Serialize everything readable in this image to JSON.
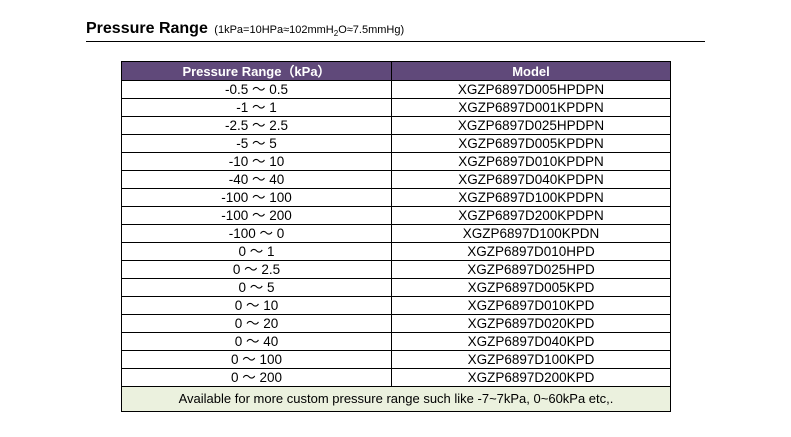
{
  "heading": {
    "title": "Pressure Range",
    "note_prefix": "(1kPa=10HPa≈102mmH",
    "note_sub": "2",
    "note_suffix": "O≈7.5mmHg)"
  },
  "table": {
    "columns": [
      "Pressure Range（kPa）",
      "Model"
    ],
    "rows": [
      {
        "range": "-0.5 ～ 0.5",
        "model": "XGZP6897D005HPDPN"
      },
      {
        "range": "-1 ～ 1",
        "model": "XGZP6897D001KPDPN"
      },
      {
        "range": "-2.5 ～ 2.5",
        "model": "XGZP6897D025HPDPN"
      },
      {
        "range": "-5 ～ 5",
        "model": "XGZP6897D005KPDPN"
      },
      {
        "range": "-10 ～ 10",
        "model": "XGZP6897D010KPDPN"
      },
      {
        "range": "-40 ～ 40",
        "model": "XGZP6897D040KPDPN"
      },
      {
        "range": "-100 ～ 100",
        "model": "XGZP6897D100KPDPN"
      },
      {
        "range": "-100 ～ 200",
        "model": "XGZP6897D200KPDPN"
      },
      {
        "range": "-100 ～ 0",
        "model": "XGZP6897D100KPDN"
      },
      {
        "range": "0 ～ 1",
        "model": "XGZP6897D010HPD"
      },
      {
        "range": "0 ～ 2.5",
        "model": "XGZP6897D025HPD"
      },
      {
        "range": "0 ～ 5",
        "model": "XGZP6897D005KPD"
      },
      {
        "range": "0 ～ 10",
        "model": "XGZP6897D010KPD"
      },
      {
        "range": "0 ～ 20",
        "model": "XGZP6897D020KPD"
      },
      {
        "range": "0 ～ 40",
        "model": "XGZP6897D040KPD"
      },
      {
        "range": "0 ～ 100",
        "model": "XGZP6897D100KPD"
      },
      {
        "range": "0 ～ 200",
        "model": "XGZP6897D200KPD"
      }
    ],
    "footer_note": "Available for more custom pressure range such like -7~7kPa, 0~60kPa etc,."
  },
  "colors": {
    "header_bg": "#60497a",
    "header_text": "#ffffff",
    "footer_bg": "#ebf1de"
  }
}
